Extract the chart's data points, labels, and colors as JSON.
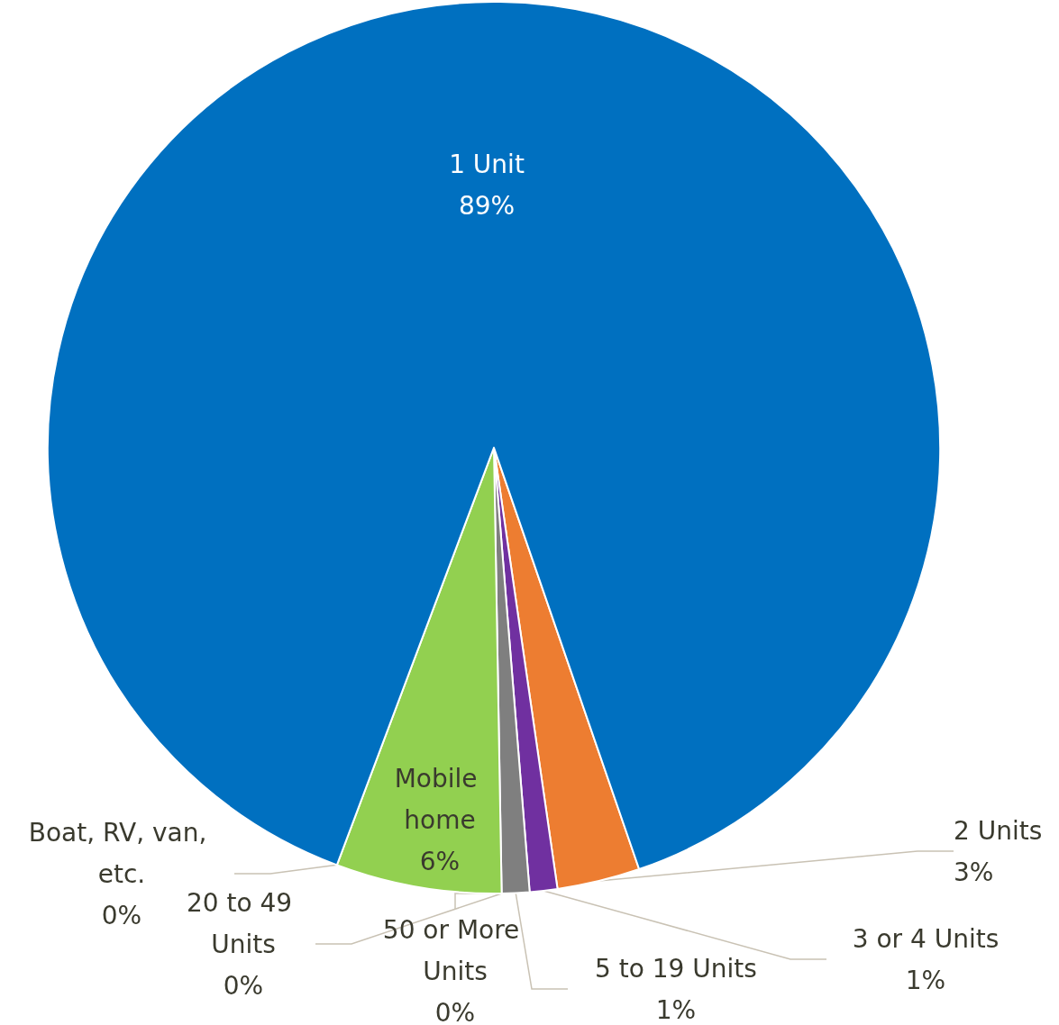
{
  "chart_data": {
    "type": "pie",
    "categories": [
      "2 Units",
      "3 or 4 Units",
      "5 to 19 Units",
      "50 or More Units",
      "20 to 49 Units",
      "Mobile home",
      "Boat, RV, van, etc.",
      "1 Unit"
    ],
    "values": [
      3,
      1,
      1,
      0,
      0,
      6,
      0,
      89
    ],
    "value_labels": [
      "3%",
      "1%",
      "1%",
      "0%",
      "0%",
      "6%",
      "0%",
      "89%"
    ],
    "colors": [
      "#ed7d31",
      "#7030a0",
      "#7f7f7f",
      "#a5a5a5",
      "#264478",
      "#92d050",
      "#255e91",
      "#0070c0"
    ]
  }
}
